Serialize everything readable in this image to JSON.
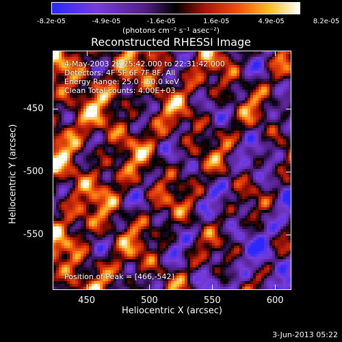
{
  "colorbar": {
    "ticks": [
      "-8.2e-05",
      "-4.9e-05",
      "-1.6e-05",
      "1.6e-05",
      "4.9e-05",
      "8.2e-05"
    ],
    "unit": "(photons cm⁻² s⁻¹ asec⁻²)",
    "vmin": -8.2e-05,
    "vmax": 8.2e-05
  },
  "chart_data": {
    "type": "heatmap",
    "title": "Reconstructed RHESSI Image",
    "xlabel": "Heliocentric X (arcsec)",
    "ylabel": "Heliocentric Y (arcsec)",
    "xlim": [
      423,
      613
    ],
    "ylim": [
      -594,
      -404
    ],
    "x_ticks": [
      "450",
      "500",
      "550",
      "600"
    ],
    "y_ticks": [
      "-450",
      "-500",
      "-550"
    ],
    "annotations": [
      "4-May-2003 22:25:42.000 to 22:31:42.000",
      "Detectors: 4F 5F 6F 7F 8F, All",
      "Energy Range: 25.0 - 50.0 keV",
      "Clean    Total counts: 4.00E+03"
    ],
    "peak_label": "Position of Peak = [466,-542]",
    "peak": [
      466,
      -542
    ]
  },
  "footer": {
    "timestamp": "3-Jun-2013 05:22"
  }
}
